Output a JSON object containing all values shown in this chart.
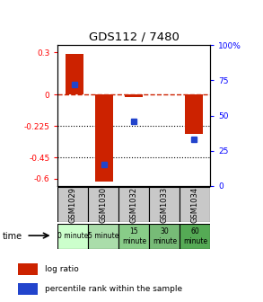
{
  "title": "GDS112 / 7480",
  "samples": [
    "GSM1029",
    "GSM1030",
    "GSM1032",
    "GSM1033",
    "GSM1034"
  ],
  "time_labels": [
    "0 minute",
    "5 minute",
    "15\nminute",
    "30\nminute",
    "60\nminute"
  ],
  "time_colors": [
    "#ccffcc",
    "#aaddaa",
    "#88cc88",
    "#77bb77",
    "#55aa55"
  ],
  "log_ratios": [
    0.29,
    -0.62,
    -0.02,
    null,
    -0.28
  ],
  "percentile_ranks": [
    72,
    15,
    46,
    null,
    33
  ],
  "ylim_left": [
    -0.65,
    0.35
  ],
  "ylim_right": [
    0,
    100
  ],
  "yticks_left": [
    0.3,
    0,
    -0.225,
    -0.45,
    -0.6
  ],
  "yticks_right": [
    100,
    75,
    50,
    25,
    0
  ],
  "bar_color": "#cc2200",
  "dot_color": "#2244cc",
  "bar_width": 0.6
}
